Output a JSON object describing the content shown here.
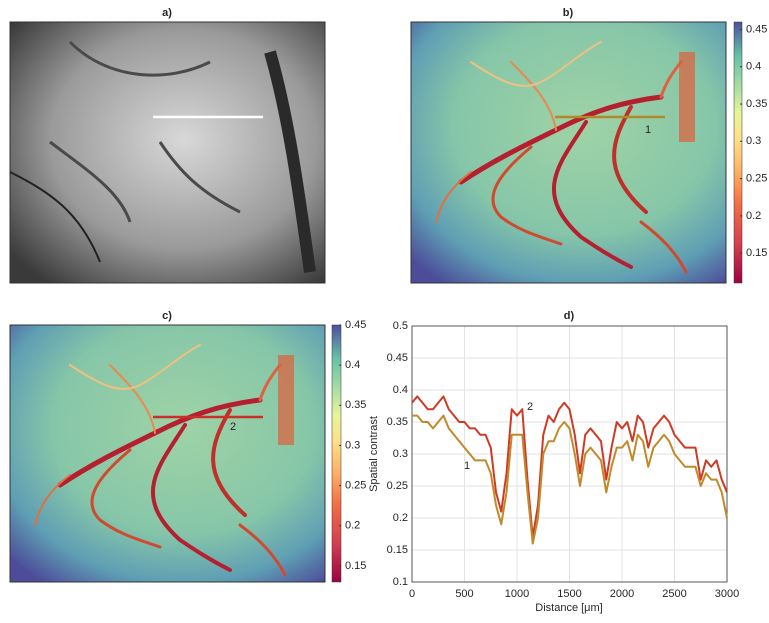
{
  "chart_data": [
    {
      "type": "image",
      "title": "a)"
    },
    {
      "type": "image",
      "title": "b)",
      "annotation": "1",
      "clim": [
        0.11,
        0.46
      ],
      "cticks": [
        0.15,
        0.2,
        0.25,
        0.3,
        0.35,
        0.4,
        0.45
      ]
    },
    {
      "type": "image",
      "title": "c)",
      "annotation": "2",
      "clim": [
        0.13,
        0.45
      ],
      "cticks": [
        0.15,
        0.2,
        0.25,
        0.3,
        0.35,
        0.4,
        0.45
      ]
    },
    {
      "type": "line",
      "title": "d)",
      "xlabel": "Distance [μm]",
      "ylabel": "Spatial contrast",
      "x": [
        0,
        50,
        100,
        150,
        200,
        250,
        300,
        350,
        400,
        450,
        500,
        550,
        600,
        650,
        700,
        750,
        800,
        850,
        900,
        950,
        1000,
        1050,
        1100,
        1150,
        1200,
        1250,
        1300,
        1350,
        1400,
        1450,
        1500,
        1550,
        1600,
        1650,
        1700,
        1750,
        1800,
        1850,
        1900,
        1950,
        2000,
        2050,
        2100,
        2150,
        2200,
        2250,
        2300,
        2350,
        2400,
        2450,
        2500,
        2550,
        2600,
        2650,
        2700,
        2750,
        2800,
        2850,
        2900,
        2950,
        3000
      ],
      "series": [
        {
          "name": "2",
          "color": "#d03a24",
          "values": [
            0.38,
            0.39,
            0.38,
            0.37,
            0.37,
            0.38,
            0.39,
            0.37,
            0.36,
            0.35,
            0.35,
            0.34,
            0.34,
            0.33,
            0.33,
            0.31,
            0.24,
            0.21,
            0.27,
            0.37,
            0.36,
            0.37,
            0.26,
            0.17,
            0.22,
            0.33,
            0.36,
            0.35,
            0.37,
            0.38,
            0.37,
            0.33,
            0.27,
            0.33,
            0.34,
            0.33,
            0.32,
            0.26,
            0.31,
            0.35,
            0.34,
            0.35,
            0.32,
            0.36,
            0.35,
            0.31,
            0.34,
            0.35,
            0.36,
            0.35,
            0.33,
            0.32,
            0.31,
            0.31,
            0.31,
            0.26,
            0.29,
            0.28,
            0.29,
            0.26,
            0.24
          ]
        },
        {
          "name": "1",
          "color": "#c08a2a",
          "values": [
            0.36,
            0.36,
            0.35,
            0.35,
            0.34,
            0.35,
            0.36,
            0.34,
            0.33,
            0.32,
            0.31,
            0.3,
            0.29,
            0.29,
            0.29,
            0.27,
            0.22,
            0.19,
            0.24,
            0.33,
            0.33,
            0.33,
            0.24,
            0.16,
            0.2,
            0.3,
            0.32,
            0.32,
            0.34,
            0.35,
            0.34,
            0.3,
            0.25,
            0.3,
            0.31,
            0.3,
            0.29,
            0.24,
            0.28,
            0.31,
            0.31,
            0.32,
            0.29,
            0.33,
            0.32,
            0.28,
            0.31,
            0.32,
            0.33,
            0.32,
            0.3,
            0.29,
            0.28,
            0.28,
            0.28,
            0.25,
            0.27,
            0.26,
            0.26,
            0.24,
            0.2
          ]
        }
      ],
      "xlim": [
        0,
        3000
      ],
      "xticks": [
        0,
        500,
        1000,
        1500,
        2000,
        2500,
        3000
      ],
      "ylim": [
        0.1,
        0.5
      ],
      "yticks": [
        0.1,
        0.15,
        0.2,
        0.25,
        0.3,
        0.35,
        0.4,
        0.45,
        0.5
      ],
      "grid": true
    }
  ]
}
